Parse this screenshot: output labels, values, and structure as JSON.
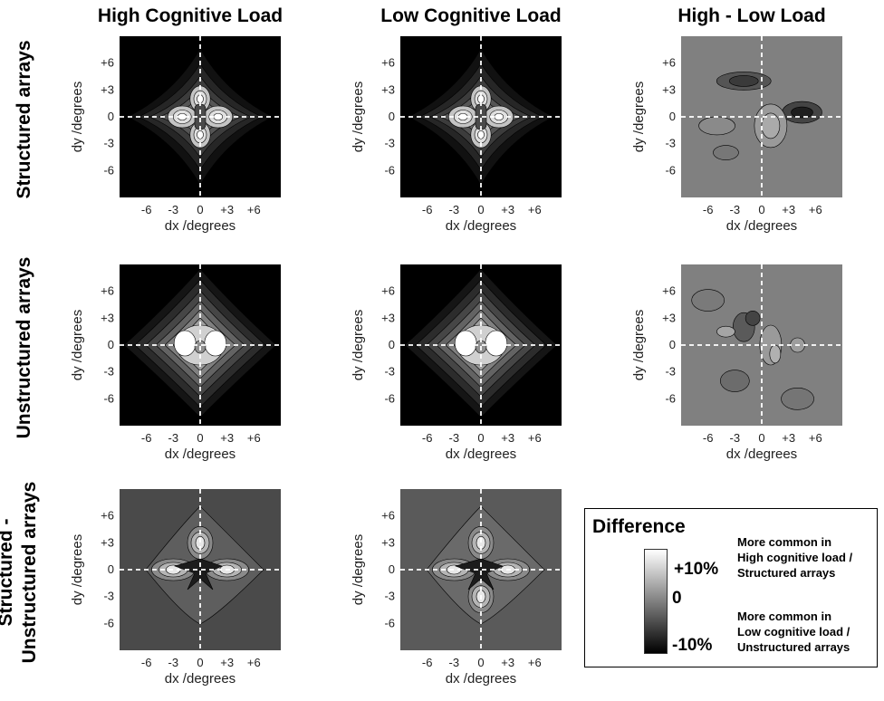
{
  "columns": [
    "High Cognitive Load",
    "Low Cognitive Load",
    "High - Low Load"
  ],
  "rows": [
    "Structured arrays",
    "Unstructured arrays",
    "Structured -\nUnstructured arrays"
  ],
  "row_lines": [
    [
      "Structured arrays"
    ],
    [
      "Unstructured arrays"
    ],
    [
      "Structured -",
      "Unstructured arrays"
    ]
  ],
  "axes": {
    "xlabel": "dx /degrees",
    "ylabel": "dy /degrees",
    "xticks": [
      "-6",
      "-3",
      "0",
      "+3",
      "+6"
    ],
    "yticks": [
      "+6",
      "+3",
      "0",
      "-3",
      "-6"
    ]
  },
  "legend": {
    "title": "Difference",
    "top_tick": "+10%",
    "mid_tick": "0",
    "bottom_tick": "-10%",
    "top_note": [
      "More common in",
      "High cognitive load /",
      "Structured arrays"
    ],
    "bottom_note": [
      "More common in",
      "Low cognitive load /",
      "Unstructured arrays"
    ]
  },
  "chart_data": [
    {
      "type": "heatmap",
      "row": "Structured arrays",
      "column": "High Cognitive Load",
      "xlabel": "dx /degrees",
      "ylabel": "dy /degrees",
      "xlim": [
        -9,
        9
      ],
      "ylim": [
        -9,
        9
      ],
      "colormap": "grayscale filled contours",
      "peaks": [
        [
          -2,
          0
        ],
        [
          2,
          0
        ],
        [
          0,
          2
        ],
        [
          0,
          -2
        ]
      ],
      "background": "#000000"
    },
    {
      "type": "heatmap",
      "row": "Structured arrays",
      "column": "Low Cognitive Load",
      "xlabel": "dx /degrees",
      "ylabel": "dy /degrees",
      "xlim": [
        -9,
        9
      ],
      "ylim": [
        -9,
        9
      ],
      "colormap": "grayscale filled contours",
      "peaks": [
        [
          -2,
          0
        ],
        [
          2,
          0
        ],
        [
          0,
          2
        ],
        [
          0,
          -2
        ]
      ],
      "background": "#000000"
    },
    {
      "type": "heatmap",
      "row": "Structured arrays",
      "column": "High - Low Load",
      "xlabel": "dx /degrees",
      "ylabel": "dy /degrees",
      "xlim": [
        -9,
        9
      ],
      "ylim": [
        -9,
        9
      ],
      "colormap": "difference, gray = 0",
      "background": "#808080"
    },
    {
      "type": "heatmap",
      "row": "Unstructured arrays",
      "column": "High Cognitive Load",
      "xlabel": "dx /degrees",
      "ylabel": "dy /degrees",
      "xlim": [
        -9,
        9
      ],
      "ylim": [
        -9,
        9
      ],
      "colormap": "grayscale filled contours",
      "peaks": [
        [
          -1,
          0
        ],
        [
          1,
          0
        ]
      ],
      "background": "#000000"
    },
    {
      "type": "heatmap",
      "row": "Unstructured arrays",
      "column": "Low Cognitive Load",
      "xlabel": "dx /degrees",
      "ylabel": "dy /degrees",
      "xlim": [
        -9,
        9
      ],
      "ylim": [
        -9,
        9
      ],
      "colormap": "grayscale filled contours",
      "peaks": [
        [
          -1,
          0
        ],
        [
          1,
          0
        ]
      ],
      "background": "#000000"
    },
    {
      "type": "heatmap",
      "row": "Unstructured arrays",
      "column": "High - Low Load",
      "xlabel": "dx /degrees",
      "ylabel": "dy /degrees",
      "xlim": [
        -9,
        9
      ],
      "ylim": [
        -9,
        9
      ],
      "colormap": "difference, gray = 0",
      "background": "#808080"
    },
    {
      "type": "heatmap",
      "row": "Structured -\nUnstructured arrays",
      "column": "High Cognitive Load",
      "xlabel": "dx /degrees",
      "ylabel": "dy /degrees",
      "xlim": [
        -9,
        9
      ],
      "ylim": [
        -9,
        9
      ],
      "colormap": "difference, gray = 0",
      "peaks": [
        [
          -3,
          0
        ],
        [
          3,
          0
        ],
        [
          0,
          3
        ]
      ],
      "background": "#4a4a4a"
    },
    {
      "type": "heatmap",
      "row": "Structured -\nUnstructured arrays",
      "column": "Low Cognitive Load",
      "xlabel": "dx /degrees",
      "ylabel": "dy /degrees",
      "xlim": [
        -9,
        9
      ],
      "ylim": [
        -9,
        9
      ],
      "colormap": "difference, gray = 0",
      "peaks": [
        [
          -3,
          0
        ],
        [
          3,
          0
        ],
        [
          0,
          3
        ],
        [
          0,
          -3
        ]
      ],
      "background": "#5a5a5a"
    }
  ]
}
